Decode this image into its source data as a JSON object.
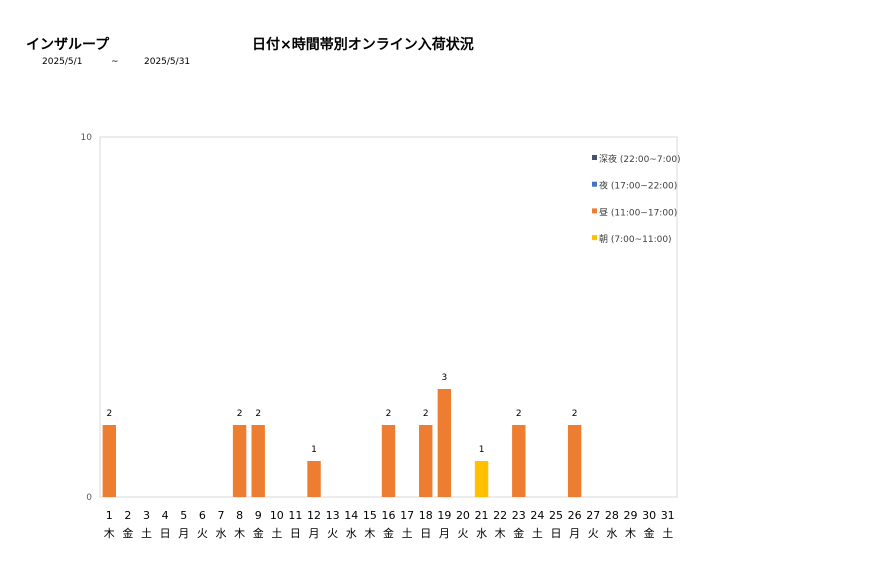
{
  "header": {
    "company": "インザループ",
    "title": "日付×時間帯別オンライン入荷状況",
    "date_from": "2025/5/1",
    "date_sep": "~",
    "date_to": "2025/5/31"
  },
  "chart_data": {
    "type": "bar",
    "stacked": true,
    "title": "日付×時間帯別オンライン入荷状況",
    "xlabel": "",
    "ylabel": "",
    "ylim": [
      0,
      10
    ],
    "yticks": [
      "0",
      "10"
    ],
    "grid": false,
    "legend_position": "top-right",
    "categories": [
      "1",
      "2",
      "3",
      "4",
      "5",
      "6",
      "7",
      "8",
      "9",
      "10",
      "11",
      "12",
      "13",
      "14",
      "15",
      "16",
      "17",
      "18",
      "19",
      "20",
      "21",
      "22",
      "23",
      "24",
      "25",
      "26",
      "27",
      "28",
      "29",
      "30",
      "31"
    ],
    "weekdays": [
      "木",
      "金",
      "土",
      "日",
      "月",
      "火",
      "水",
      "木",
      "金",
      "土",
      "日",
      "月",
      "火",
      "水",
      "木",
      "金",
      "土",
      "日",
      "月",
      "火",
      "水",
      "木",
      "金",
      "土",
      "日",
      "月",
      "火",
      "水",
      "木",
      "金",
      "土"
    ],
    "series": [
      {
        "name": "朝 (7:00~11:00)",
        "color": "#FFC000",
        "values": [
          0,
          0,
          0,
          0,
          0,
          0,
          0,
          0,
          0,
          0,
          0,
          0,
          0,
          0,
          0,
          0,
          0,
          0,
          0,
          0,
          1,
          0,
          0,
          0,
          0,
          0,
          0,
          0,
          0,
          0,
          0
        ]
      },
      {
        "name": "昼 (11:00~17:00)",
        "color": "#ED7D31",
        "values": [
          2,
          0,
          0,
          0,
          0,
          0,
          0,
          2,
          2,
          0,
          0,
          1,
          0,
          0,
          0,
          2,
          0,
          2,
          3,
          0,
          0,
          0,
          2,
          0,
          0,
          2,
          0,
          0,
          0,
          0,
          0
        ]
      },
      {
        "name": "夜 (17:00~22:00)",
        "color": "#4472C4",
        "values": [
          0,
          0,
          0,
          0,
          0,
          0,
          0,
          0,
          0,
          0,
          0,
          0,
          0,
          0,
          0,
          0,
          0,
          0,
          0,
          0,
          0,
          0,
          0,
          0,
          0,
          0,
          0,
          0,
          0,
          0,
          0
        ]
      },
      {
        "name": "深夜 (22:00~7:00)",
        "color": "#44546A",
        "values": [
          0,
          0,
          0,
          0,
          0,
          0,
          0,
          0,
          0,
          0,
          0,
          0,
          0,
          0,
          0,
          0,
          0,
          0,
          0,
          0,
          0,
          0,
          0,
          0,
          0,
          0,
          0,
          0,
          0,
          0,
          0
        ]
      }
    ],
    "legend_order": [
      3,
      2,
      1,
      0
    ]
  }
}
